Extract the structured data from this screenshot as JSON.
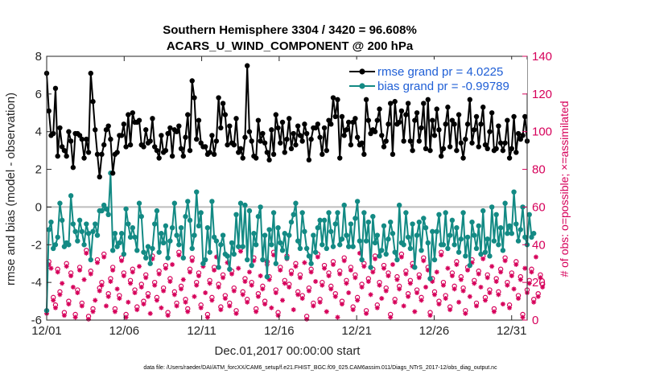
{
  "chart_data": {
    "type": "line",
    "title_line1": "Southern Hemisphere 3304 / 3420 = 96.608%",
    "title_line2": "ACARS_U_WIND_COMPONENT @ 200 hPa",
    "xlabel": "Dec.01,2017 00:00:00 start",
    "ylabel_left": "rmse and bias (model - observation)",
    "ylabel_right": "# of obs: o=possible; ×=assimilated",
    "footnote": "data file: /Users/raeder/DAI/ATM_forcXX/CAM6_setup/f.e21.FHIST_BGC.f09_025.CAM6assim.011/Diags_NTrS_2017-12/obs_diag_output.nc",
    "x_tick_labels": [
      "12/01",
      "12/06",
      "12/11",
      "12/16",
      "12/21",
      "12/26",
      "12/31"
    ],
    "x_tick_days": [
      1,
      6,
      11,
      16,
      21,
      26,
      31
    ],
    "xlim": [
      1,
      32
    ],
    "ylim_left": [
      -6,
      8
    ],
    "y_ticks_left": [
      "-6",
      "-4",
      "-2",
      "0",
      "2",
      "4",
      "6",
      "8"
    ],
    "ylim_right": [
      0,
      140
    ],
    "y_ticks_right": [
      "0",
      "20",
      "40",
      "60",
      "80",
      "100",
      "120",
      "140"
    ],
    "colors": {
      "rmse": "#000000",
      "bias": "#138a84",
      "obs": "#d6005a",
      "zero": "#bdbdbd",
      "legend_text": "#1f5fd6"
    },
    "legend": [
      "rmse grand pr = 4.0225",
      "bias grand pr = -0.99789"
    ],
    "series": [
      {
        "name": "rmse",
        "values": [
          7.1,
          5.1,
          3.8,
          3.9,
          6.3,
          2.7,
          4.2,
          3.2,
          3.0,
          2.7,
          4.0,
          3.5,
          2.1,
          3.9,
          3.9,
          3.8,
          3.6,
          2.6,
          3.6,
          2.9,
          7.1,
          5.6,
          4.1,
          2.8,
          1.6,
          2.8,
          3.3,
          4.1,
          4.3,
          3.6,
          1.8,
          2.8,
          2.9,
          3.8,
          3.8,
          4.4,
          3.2,
          4.9,
          3.3,
          5.0,
          4.5,
          4.5,
          4.6,
          3.3,
          3.2,
          4.1,
          3.4,
          3.5,
          4.7,
          3.2,
          3.0,
          2.6,
          3.8,
          2.9,
          3.0,
          3.9,
          4.2,
          2.7,
          4.1,
          4.0,
          4.3,
          3.1,
          2.7,
          3.7,
          4.9,
          3.0,
          6.7,
          5.8,
          3.6,
          4.6,
          3.4,
          3.2,
          3.2,
          2.8,
          2.9,
          3.8,
          2.8,
          3.5,
          5.8,
          4.2,
          5.5,
          4.9,
          3.3,
          4.3,
          3.4,
          3.3,
          4.7,
          2.9,
          3.1,
          2.6,
          3.7,
          7.5,
          4.0,
          3.5,
          2.7,
          2.6,
          4.6,
          3.5,
          3.9,
          3.4,
          2.9,
          2.5,
          4.1,
          2.8,
          4.9,
          4.2,
          3.4,
          4.5,
          2.9,
          3.6,
          4.7,
          3.1,
          3.9,
          3.3,
          4.3,
          3.8,
          3.5,
          4.4,
          3.9,
          2.5,
          3.6,
          4.2,
          4.2,
          4.4,
          3.7,
          2.8,
          4.2,
          3.0,
          4.6,
          4.4,
          5.8,
          4.8,
          5.7,
          2.6,
          4.8,
          3.8,
          4.1,
          4.5,
          3.3,
          4.5,
          4.7,
          3.7,
          3.3,
          3.4,
          2.8,
          5.7,
          4.6,
          3.9,
          4.1,
          4.0,
          4.6,
          5.2,
          3.8,
          3.2,
          3.5,
          4.4,
          5.5,
          2.8,
          5.6,
          4.4,
          4.5,
          5.1,
          3.5,
          4.9,
          5.5,
          3.5,
          3.0,
          4.6,
          5.0,
          3.5,
          4.2,
          5.5,
          3.1,
          5.7,
          3.0,
          4.6,
          3.8,
          5.2,
          4.1,
          2.7,
          3.1,
          4.4,
          5.3,
          3.2,
          4.6,
          4.4,
          3.0,
          4.9,
          3.4,
          2.6,
          3.6,
          4.4,
          5.7,
          3.4,
          4.1,
          4.8,
          3.2,
          4.4,
          5.3,
          3.3,
          3.1,
          4.0,
          5.0,
          3.0,
          3.1,
          4.3,
          3.4,
          3.0,
          3.4,
          4.6,
          2.6,
          3.1,
          4.8,
          2.9,
          3.9,
          3.6,
          3.8,
          4.8,
          3.5
        ]
      },
      {
        "name": "bias",
        "values": [
          -5.5,
          -1.2,
          -0.8,
          -2.2,
          -2.0,
          -1.6,
          0.2,
          -0.7,
          -2.1,
          -1.9,
          -2.0,
          0.6,
          -0.9,
          -1.3,
          -1.8,
          -0.7,
          -1.3,
          -2.0,
          -0.9,
          -1.4,
          -2.8,
          -1.3,
          -0.9,
          -1.5,
          -0.2,
          -0.2,
          0.1,
          -0.1,
          -0.4,
          1.8,
          -2.3,
          -1.4,
          -2.1,
          -1.9,
          -1.4,
          -2.5,
          -0.1,
          -0.9,
          -1.6,
          -1.1,
          -1.6,
          -2.3,
          0.2,
          -0.5,
          -2.4,
          -2.7,
          -2.1,
          -3.0,
          -2.2,
          -0.9,
          -0.2,
          -2.4,
          -1.4,
          -1.9,
          -1.0,
          -2.7,
          -1.8,
          -1.1,
          0.2,
          -1.5,
          -2.0,
          -1.1,
          -2.7,
          -0.5,
          0.3,
          -0.7,
          -2.2,
          -1.5,
          0.8,
          -1.0,
          -0.3,
          -3.0,
          -2.8,
          -1.1,
          -2.4,
          0.3,
          -1.6,
          -1.8,
          -3.2,
          -2.0,
          -1.5,
          -2.5,
          -2.6,
          -3.3,
          -1.9,
          -2.5,
          -0.4,
          -2.1,
          0.2,
          -2.1,
          0.1,
          -2.8,
          -0.2,
          -3.1,
          -1.4,
          -2.0,
          -0.5,
          0.0,
          -2.8,
          -1.5,
          -3.7,
          -1.2,
          -2.0,
          -0.3,
          -3.0,
          -1.1,
          -1.9,
          -2.3,
          -1.4,
          -2.7,
          -1.5,
          -0.8,
          -0.4,
          0.2,
          -1.8,
          -2.2,
          -0.3,
          -1.3,
          -2.2,
          -2.6,
          -3.0,
          -1.5,
          -2.4,
          -1.1,
          -0.7,
          -2.0,
          -0.7,
          -2.2,
          -0.3,
          -1.3,
          -2.1,
          -0.9,
          -0.3,
          -2.0,
          -1.7,
          0.1,
          -1.5,
          -2.1,
          -0.9,
          -2.1,
          -0.6,
          0.3,
          -1.8,
          -2.8,
          -0.3,
          -1.8,
          -0.8,
          -3.2,
          -0.5,
          -1.9,
          -1.5,
          -2.6,
          -2.3,
          -1.0,
          -2.5,
          -1.7,
          -0.8,
          -1.4,
          -2.4,
          -2.8,
          0.1,
          -1.9,
          -2.0,
          -0.3,
          -1.6,
          -2.2,
          -0.9,
          -3.2,
          -1.5,
          -0.8,
          -2.3,
          -0.6,
          -1.1,
          -1.9,
          -3.8,
          -1.3,
          -2.8,
          -1.3,
          -0.4,
          -2.0,
          -2.0,
          -0.3,
          -2.2,
          -1.5,
          -0.7,
          -2.0,
          -1.1,
          -2.4,
          -1.7,
          -0.3,
          -2.6,
          -1.6,
          -3.1,
          -0.8,
          -1.5,
          -2.2,
          -1.0,
          -2.5,
          -0.2,
          -2.4,
          -1.7,
          -2.6,
          0.0,
          -1.8,
          -0.4,
          -2.0,
          -1.1,
          -2.3,
          0.2,
          -1.4,
          -1.0,
          -1.4,
          0.8,
          -0.9,
          -1.8,
          -1.2,
          0.0,
          -1.6,
          -2.0,
          -0.4,
          -1.6,
          -1.4
        ]
      },
      {
        "name": "obs_possible",
        "values": [
          5,
          31,
          29,
          12,
          8,
          27,
          15,
          21,
          4,
          30,
          10,
          25,
          19,
          3,
          16,
          28,
          9,
          23,
          37,
          2,
          26,
          6,
          12,
          32,
          17,
          20,
          35,
          9,
          14,
          22,
          28,
          6,
          18,
          13,
          33,
          25,
          3,
          11,
          21,
          27,
          16,
          7,
          30,
          19,
          10,
          24,
          14,
          5,
          34,
          20,
          12,
          26,
          8,
          17,
          29,
          4,
          22,
          31,
          15,
          9,
          36,
          18,
          23,
          11,
          6,
          27,
          33,
          14,
          20,
          25,
          8,
          30,
          16,
          3,
          21,
          12,
          28,
          35,
          19,
          7,
          24,
          13,
          32,
          9,
          26,
          17,
          5,
          29,
          38,
          15,
          22,
          11,
          27,
          20,
          33,
          6,
          14,
          25,
          18,
          10,
          31,
          23,
          8,
          36,
          16,
          4,
          28,
          12,
          21,
          34,
          19,
          26,
          7,
          30,
          15,
          24,
          13,
          32,
          2,
          17,
          27,
          9,
          22,
          35,
          11,
          20,
          29,
          6,
          25,
          18,
          31,
          14,
          3,
          26,
          10,
          33,
          21,
          16,
          28,
          7,
          24,
          12,
          37,
          19,
          30,
          5,
          22,
          15,
          27,
          34,
          8,
          20,
          13,
          29,
          17,
          25,
          3,
          31,
          11,
          23,
          18,
          35,
          9,
          26,
          14,
          21,
          30,
          6,
          16,
          24,
          12,
          33,
          19,
          28,
          4,
          22,
          15,
          27,
          10,
          36,
          20,
          13,
          29,
          7,
          25,
          18,
          31,
          11,
          23,
          17,
          5,
          28,
          14,
          32,
          21,
          9,
          26,
          19,
          34,
          12,
          24,
          16,
          30,
          6,
          22,
          15,
          27,
          10,
          33,
          20,
          8,
          25,
          18,
          31,
          13,
          23,
          3,
          29,
          16,
          21,
          27,
          11,
          35,
          14,
          24,
          19
        ]
      }
    ]
  }
}
